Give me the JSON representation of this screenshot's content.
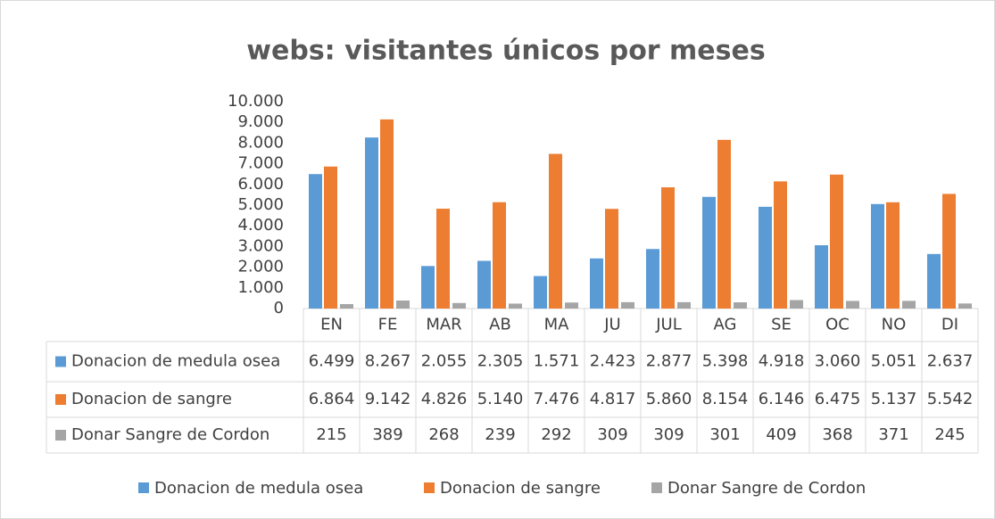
{
  "chart_data": {
    "type": "bar",
    "title": "webs: visitantes únicos por meses",
    "categories": [
      "EN",
      "FE",
      "MAR",
      "AB",
      "MA",
      "JU",
      "JUL",
      "AG",
      "SE",
      "OC",
      "NO",
      "DI"
    ],
    "series": [
      {
        "name": "Donacion de medula osea",
        "color": "#5b9bd5",
        "values": [
          6499,
          8267,
          2055,
          2305,
          1571,
          2423,
          2877,
          5398,
          4918,
          3060,
          5051,
          2637
        ],
        "value_labels": [
          "6.499",
          "8.267",
          "2.055",
          "2.305",
          "1.571",
          "2.423",
          "2.877",
          "5.398",
          "4.918",
          "3.060",
          "5.051",
          "2.637"
        ]
      },
      {
        "name": "Donacion de sangre",
        "color": "#ed7d31",
        "values": [
          6864,
          9142,
          4826,
          5140,
          7476,
          4817,
          5860,
          8154,
          6146,
          6475,
          5137,
          5542
        ],
        "value_labels": [
          "6.864",
          "9.142",
          "4.826",
          "5.140",
          "7.476",
          "4.817",
          "5.860",
          "8.154",
          "6.146",
          "6.475",
          "5.137",
          "5.542"
        ]
      },
      {
        "name": "Donar Sangre de Cordon",
        "color": "#a5a5a5",
        "values": [
          215,
          389,
          268,
          239,
          292,
          309,
          309,
          301,
          409,
          368,
          371,
          245
        ],
        "value_labels": [
          "215",
          "389",
          "268",
          "239",
          "292",
          "309",
          "309",
          "301",
          "409",
          "368",
          "371",
          "245"
        ]
      }
    ],
    "ylim": [
      0,
      10000
    ],
    "yticks": [
      0,
      {
        "value": 1000,
        "label": "1.000"
      },
      {
        "value": 2000,
        "label": "2.000"
      },
      {
        "value": 3000,
        "label": "3.000"
      },
      {
        "value": 4000,
        "label": "4.000"
      },
      {
        "value": 5000,
        "label": "5.000"
      },
      {
        "value": 6000,
        "label": "6.000"
      },
      {
        "value": 7000,
        "label": "7.000"
      },
      {
        "value": 8000,
        "label": "8.000"
      },
      {
        "value": 9000,
        "label": "9.000"
      },
      {
        "value": 10000,
        "label": "10.000"
      }
    ],
    "grid": false
  }
}
